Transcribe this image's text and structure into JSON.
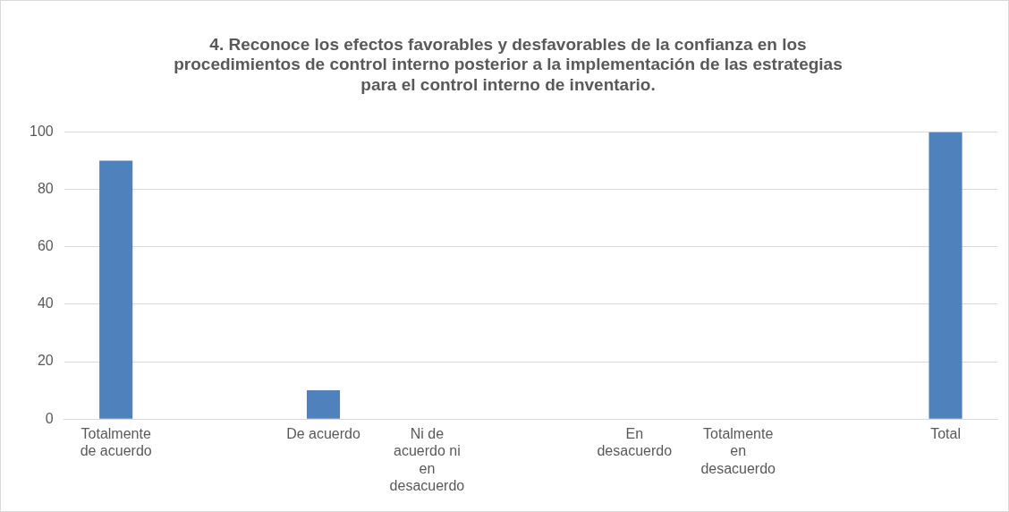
{
  "chart_data": {
    "type": "bar",
    "title": "4. Reconoce los efectos favorables y desfavorables de la confianza en los procedimientos de control interno posterior a la implementación de las estrategias para el control interno de inventario.",
    "categories": [
      "Totalmente de acuerdo",
      null,
      "De acuerdo",
      "Ni de acuerdo ni en desacuerdo",
      null,
      "En desacuerdo",
      "Totalmente en desacuerdo",
      null,
      "Total"
    ],
    "values": [
      90,
      null,
      10,
      0,
      null,
      0,
      0,
      null,
      100
    ],
    "color": "#4f81bd",
    "ylim": [
      0,
      100
    ],
    "yticks": [
      0,
      20,
      40,
      60,
      80,
      100
    ],
    "grid": "y",
    "legend": false
  }
}
